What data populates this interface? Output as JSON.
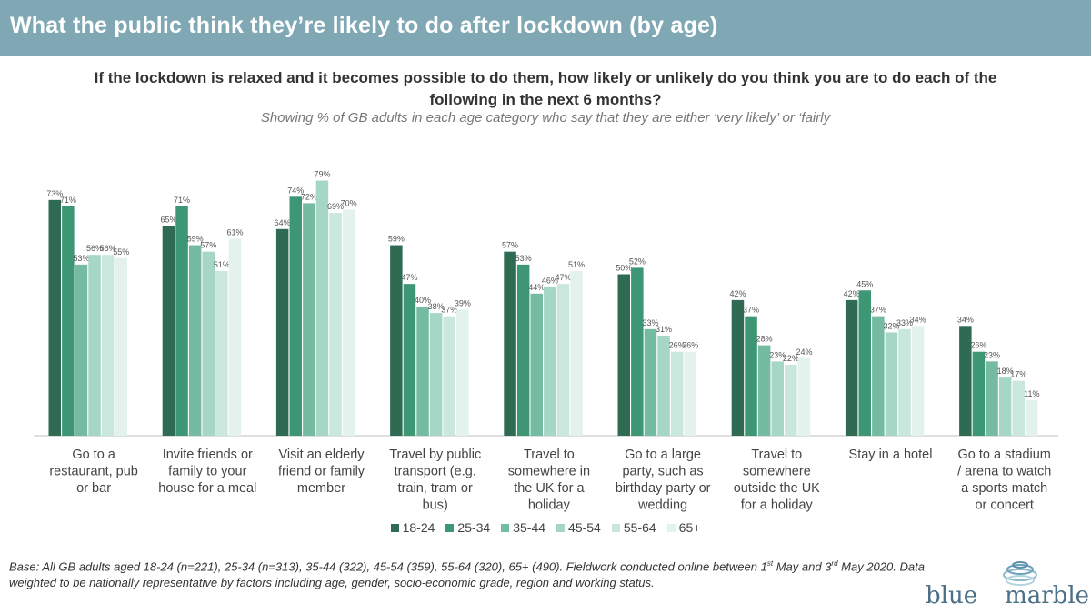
{
  "header": {
    "title": "What the public think they’re likely to do after lockdown (by age)"
  },
  "question": "If the lockdown is relaxed and it becomes possible to do them, how likely or unlikely do you think you are to do each of the following in the next 6 months?",
  "subtitle": "Showing % of GB adults in each age category who say that they are either ‘very likely’ or ‘fairly",
  "base_note": {
    "part1": "Base: All GB adults aged 18-24 (n=221), 25-34 (n=313), 35-44 (322), 45-54 (359), 55-64 (320), 65+ (490). Fieldwork conducted online between 1",
    "sup1": "st",
    "part2": " May and 3",
    "sup2": "rd",
    "part3": " May 2020. Data weighted to be nationally representative by factors including age, gender, socio-economic grade, region and working status."
  },
  "logo": {
    "left": "blue",
    "right": "marble"
  },
  "colors": [
    "#2e6b52",
    "#3d9775",
    "#75bba2",
    "#a6d6c6",
    "#c9e7dd",
    "#e3f2ed"
  ],
  "chart_data": {
    "type": "bar",
    "ylim": [
      0,
      100
    ],
    "categories": [
      [
        "Go to a",
        "restaurant, pub",
        "or bar"
      ],
      [
        "Invite friends or",
        "family to your",
        "house for a meal"
      ],
      [
        "Visit an elderly",
        "friend or family",
        "member"
      ],
      [
        "Travel by public",
        "transport (e.g.",
        "train, tram or",
        "bus)"
      ],
      [
        "Travel to",
        "somewhere in",
        "the UK for a",
        "holiday"
      ],
      [
        "Go to a large",
        "party, such as",
        "birthday party or",
        "wedding"
      ],
      [
        "Travel to",
        "somewhere",
        "outside the UK",
        "for a holiday"
      ],
      [
        "Stay in a hotel"
      ],
      [
        "Go to a stadium",
        "/ arena to watch",
        "a sports match",
        "or concert"
      ]
    ],
    "series": [
      {
        "name": "18-24",
        "values": [
          73,
          65,
          64,
          59,
          57,
          50,
          42,
          42,
          34
        ]
      },
      {
        "name": "25-34",
        "values": [
          71,
          71,
          74,
          47,
          53,
          52,
          37,
          45,
          26
        ]
      },
      {
        "name": "35-44",
        "values": [
          53,
          59,
          72,
          40,
          44,
          33,
          28,
          37,
          23
        ]
      },
      {
        "name": "45-54",
        "values": [
          56,
          57,
          79,
          38,
          46,
          31,
          23,
          32,
          18
        ]
      },
      {
        "name": "55-64",
        "values": [
          56,
          51,
          69,
          37,
          47,
          26,
          22,
          33,
          17
        ]
      },
      {
        "name": "65+",
        "values": [
          55,
          61,
          70,
          39,
          51,
          26,
          24,
          34,
          11
        ]
      }
    ]
  }
}
